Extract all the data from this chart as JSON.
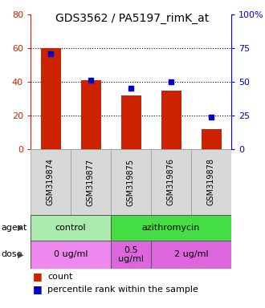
{
  "title": "GDS3562 / PA5197_rimK_at",
  "samples": [
    "GSM319874",
    "GSM319877",
    "GSM319875",
    "GSM319876",
    "GSM319878"
  ],
  "counts": [
    60,
    41,
    32,
    35,
    12
  ],
  "percentiles": [
    71,
    51,
    45,
    50,
    24
  ],
  "left_ylim": [
    0,
    80
  ],
  "right_ylim": [
    0,
    100
  ],
  "left_yticks": [
    0,
    20,
    40,
    60,
    80
  ],
  "right_yticks": [
    0,
    25,
    50,
    75,
    100
  ],
  "right_yticklabels": [
    "0",
    "25",
    "50",
    "75",
    "100%"
  ],
  "bar_color": "#cc2200",
  "marker_color": "#0000cc",
  "agent_groups": [
    {
      "label": "control",
      "color": "#aaeaaa",
      "span": [
        0,
        2
      ]
    },
    {
      "label": "azithromycin",
      "color": "#44dd44",
      "span": [
        2,
        5
      ]
    }
  ],
  "dose_groups": [
    {
      "label": "0 ug/ml",
      "color": "#ee88ee",
      "span": [
        0,
        2
      ]
    },
    {
      "label": "0.5\nug/ml",
      "color": "#dd66dd",
      "span": [
        2,
        3
      ]
    },
    {
      "label": "2 ug/ml",
      "color": "#dd66dd",
      "span": [
        3,
        5
      ]
    }
  ],
  "legend_count_label": "count",
  "legend_pct_label": "percentile rank within the sample",
  "agent_label": "agent",
  "dose_label": "dose",
  "title_fontsize": 10,
  "tick_fontsize": 8,
  "sample_fontsize": 7,
  "annot_fontsize": 8,
  "legend_fontsize": 8,
  "bar_width": 0.5,
  "bg_color": "#d8d8d8",
  "grid_ticks": [
    20,
    40,
    60
  ]
}
